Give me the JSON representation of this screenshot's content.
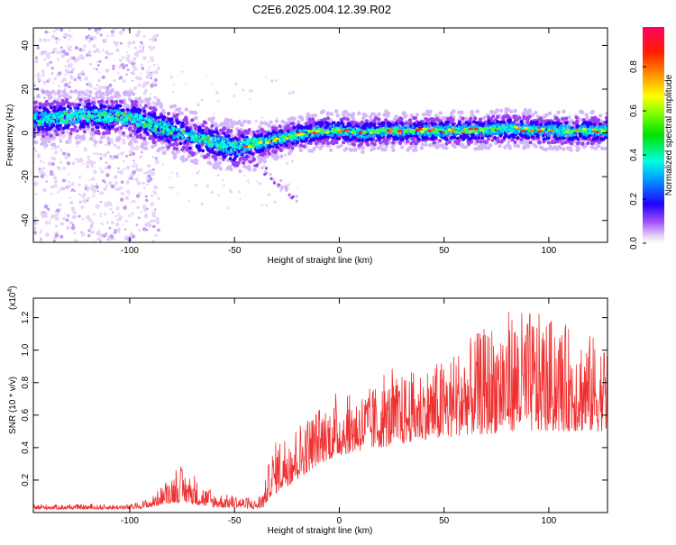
{
  "title": "C2E6.2025.004.12.39.R02",
  "colors": {
    "signal": "#f03030",
    "axis": "#000000"
  },
  "chart_data": [
    {
      "type": "heatmap",
      "xlabel": "Height of straight line (km)",
      "ylabel": "Frequency (Hz)",
      "xlim": [
        -146,
        128
      ],
      "ylim": [
        -50,
        48
      ],
      "x_ticks": [
        -100,
        -50,
        0,
        50,
        100
      ],
      "x_tick_labels": [
        "-100",
        "-50",
        "0",
        "50",
        "100"
      ],
      "y_ticks": [
        -40,
        -20,
        0,
        20,
        40
      ],
      "y_tick_labels": [
        "-40",
        "-20",
        "0",
        "20",
        "40"
      ],
      "ridge": {
        "x": [
          -146,
          -120,
          -100,
          -90,
          -80,
          -70,
          -60,
          -50,
          -45,
          -40,
          -30,
          -20,
          -10,
          0,
          10,
          20,
          40,
          60,
          80,
          100,
          128
        ],
        "y": [
          6,
          8,
          7,
          4,
          1,
          -2,
          -4,
          -7,
          -6,
          -5,
          -3,
          -1,
          1,
          1,
          0,
          1,
          1,
          1,
          2,
          1,
          1
        ]
      },
      "colorbar": {
        "label": "Normalized spectral amplitude",
        "range": [
          0,
          0.98
        ],
        "ticks": [
          0.0,
          0.2,
          0.4,
          0.6,
          0.8
        ],
        "tick_labels": [
          "0.0",
          "0.2",
          "0.4",
          "0.6",
          "0.8"
        ]
      }
    },
    {
      "type": "line",
      "xlabel": "Height of straight line (km)",
      "ylabel": "SNR (10 * v/v)",
      "y_multiplier": "(x10",
      "y_multiplier_exp": "4",
      "y_multiplier_close": ")",
      "xlim": [
        -146,
        128
      ],
      "ylim": [
        0,
        13200
      ],
      "x_ticks": [
        -100,
        -50,
        0,
        50,
        100
      ],
      "x_tick_labels": [
        "-100",
        "-50",
        "0",
        "50",
        "100"
      ],
      "y_ticks": [
        2000,
        4000,
        6000,
        8000,
        10000,
        12000
      ],
      "y_tick_labels": [
        "0.2",
        "0.4",
        "0.6",
        "0.8",
        "1.0",
        "1.2"
      ],
      "envelope": {
        "x": [
          -146,
          -100,
          -90,
          -85,
          -80,
          -75,
          -70,
          -60,
          -50,
          -40,
          -36,
          -33,
          -30,
          -20,
          -10,
          0,
          10,
          20,
          30,
          40,
          50,
          60,
          70,
          80,
          90,
          100,
          110,
          120,
          128
        ],
        "low": [
          200,
          200,
          300,
          500,
          600,
          600,
          500,
          300,
          300,
          200,
          300,
          1000,
          1200,
          2000,
          3000,
          3500,
          3800,
          4000,
          4200,
          4500,
          4500,
          4800,
          4800,
          5000,
          5000,
          5000,
          5000,
          5000,
          5000
        ],
        "high": [
          500,
          500,
          900,
          1600,
          2400,
          2700,
          2200,
          1200,
          1100,
          800,
          1500,
          3500,
          4500,
          5500,
          6500,
          7000,
          7500,
          8000,
          8500,
          9000,
          9500,
          10500,
          11500,
          12500,
          12500,
          12000,
          11500,
          11000,
          10500
        ]
      }
    }
  ]
}
